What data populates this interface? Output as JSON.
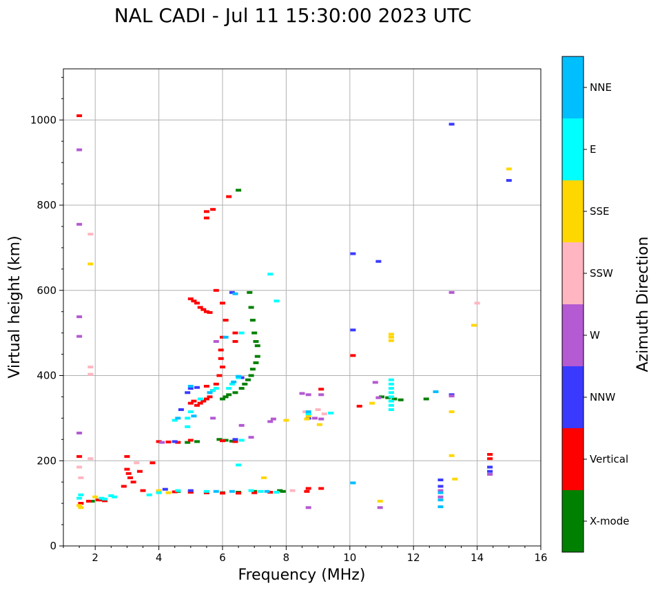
{
  "chart_data": {
    "type": "scatter",
    "title": "NAL CADI - Jul 11 15:30:00 2023 UTC",
    "xlabel": "Frequency (MHz)",
    "ylabel": "Virtual height (km)",
    "xlim": [
      1,
      16
    ],
    "ylim": [
      0,
      1120
    ],
    "xticks": [
      2,
      4,
      6,
      8,
      10,
      12,
      14,
      16
    ],
    "yticks": [
      0,
      200,
      400,
      600,
      800,
      1000
    ],
    "grid": true,
    "colorbar": {
      "label": "Azimuth Direction",
      "categories": [
        "X-mode",
        "Vertical",
        "NNW",
        "W",
        "SSW",
        "SSE",
        "E",
        "NNE"
      ],
      "colors": [
        "#008000",
        "#ff0000",
        "#3a3aff",
        "#b45ad2",
        "#ffb6c1",
        "#ffd700",
        "#00ffff",
        "#00bfff"
      ]
    },
    "series": [
      {
        "name": "X-mode",
        "points": [
          [
            6.5,
            835
          ],
          [
            6.85,
            595
          ],
          [
            6.9,
            560
          ],
          [
            6.95,
            530
          ],
          [
            7.0,
            500
          ],
          [
            7.05,
            480
          ],
          [
            7.1,
            470
          ],
          [
            7.1,
            445
          ],
          [
            7.05,
            430
          ],
          [
            6.95,
            415
          ],
          [
            6.9,
            400
          ],
          [
            6.8,
            390
          ],
          [
            6.7,
            380
          ],
          [
            6.6,
            370
          ],
          [
            6.4,
            360
          ],
          [
            6.2,
            355
          ],
          [
            6.1,
            350
          ],
          [
            6.0,
            345
          ],
          [
            5.9,
            250
          ],
          [
            6.1,
            248
          ],
          [
            6.3,
            246
          ],
          [
            5.2,
            245
          ],
          [
            4.9,
            243
          ],
          [
            7.8,
            130
          ],
          [
            7.9,
            128
          ],
          [
            7.0,
            128
          ],
          [
            6.5,
            126
          ],
          [
            6.0,
            125
          ],
          [
            5.5,
            125
          ],
          [
            5.0,
            127
          ],
          [
            4.6,
            128
          ],
          [
            11.0,
            350
          ],
          [
            11.2,
            348
          ],
          [
            11.4,
            345
          ],
          [
            11.6,
            343
          ],
          [
            12.4,
            345
          ],
          [
            2.2,
            108
          ],
          [
            1.9,
            105
          ]
        ]
      },
      {
        "name": "Vertical",
        "points": [
          [
            1.5,
            1010
          ],
          [
            6.2,
            820
          ],
          [
            5.7,
            790
          ],
          [
            5.5,
            785
          ],
          [
            5.5,
            770
          ],
          [
            5.0,
            580
          ],
          [
            5.1,
            575
          ],
          [
            5.2,
            570
          ],
          [
            5.3,
            560
          ],
          [
            5.4,
            555
          ],
          [
            5.5,
            550
          ],
          [
            5.6,
            548
          ],
          [
            5.8,
            600
          ],
          [
            6.0,
            570
          ],
          [
            6.1,
            530
          ],
          [
            6.0,
            490
          ],
          [
            6.4,
            500
          ],
          [
            6.4,
            480
          ],
          [
            5.95,
            460
          ],
          [
            5.95,
            440
          ],
          [
            6.0,
            420
          ],
          [
            5.9,
            400
          ],
          [
            5.8,
            380
          ],
          [
            5.7,
            365
          ],
          [
            5.6,
            350
          ],
          [
            5.5,
            345
          ],
          [
            5.4,
            340
          ],
          [
            5.3,
            335
          ],
          [
            5.2,
            330
          ],
          [
            5.1,
            340
          ],
          [
            5.0,
            335
          ],
          [
            5.5,
            375
          ],
          [
            10.1,
            447
          ],
          [
            10.3,
            328
          ],
          [
            9.1,
            368
          ],
          [
            8.7,
            135
          ],
          [
            8.65,
            128
          ],
          [
            9.1,
            135
          ],
          [
            4.0,
            245
          ],
          [
            4.3,
            244
          ],
          [
            4.6,
            243
          ],
          [
            5.0,
            248
          ],
          [
            6.0,
            247
          ],
          [
            6.4,
            245
          ],
          [
            3.0,
            210
          ],
          [
            3.0,
            180
          ],
          [
            3.05,
            170
          ],
          [
            3.1,
            160
          ],
          [
            3.2,
            150
          ],
          [
            3.4,
            175
          ],
          [
            3.8,
            195
          ],
          [
            2.9,
            140
          ],
          [
            3.5,
            130
          ],
          [
            4.0,
            128
          ],
          [
            4.5,
            127
          ],
          [
            5.0,
            126
          ],
          [
            5.5,
            125
          ],
          [
            6.0,
            124
          ],
          [
            6.5,
            124
          ],
          [
            7.0,
            125
          ],
          [
            7.5,
            126
          ],
          [
            2.1,
            108
          ],
          [
            2.3,
            106
          ],
          [
            1.8,
            105
          ],
          [
            1.55,
            100
          ],
          [
            14.4,
            215
          ],
          [
            14.4,
            205
          ],
          [
            1.5,
            210
          ]
        ]
      },
      {
        "name": "NNW",
        "points": [
          [
            13.2,
            990
          ],
          [
            15.0,
            858
          ],
          [
            10.1,
            686
          ],
          [
            10.1,
            507
          ],
          [
            10.9,
            668
          ],
          [
            6.3,
            595
          ],
          [
            5.0,
            370
          ],
          [
            4.9,
            360
          ],
          [
            5.2,
            372
          ],
          [
            4.7,
            320
          ],
          [
            6.4,
            250
          ],
          [
            6.6,
            395
          ],
          [
            8.7,
            300
          ],
          [
            12.85,
            155
          ],
          [
            12.85,
            140
          ],
          [
            13.2,
            355
          ],
          [
            14.4,
            185
          ],
          [
            14.4,
            175
          ],
          [
            5.0,
            130
          ],
          [
            4.2,
            133
          ],
          [
            4.5,
            245
          ]
        ]
      },
      {
        "name": "W",
        "points": [
          [
            1.5,
            930
          ],
          [
            1.5,
            755
          ],
          [
            1.5,
            538
          ],
          [
            1.5,
            492
          ],
          [
            5.8,
            480
          ],
          [
            5.7,
            300
          ],
          [
            7.6,
            298
          ],
          [
            7.5,
            292
          ],
          [
            6.6,
            283
          ],
          [
            6.9,
            255
          ],
          [
            8.5,
            358
          ],
          [
            8.7,
            355
          ],
          [
            8.9,
            300
          ],
          [
            9.1,
            298
          ],
          [
            9.1,
            355
          ],
          [
            10.8,
            384
          ],
          [
            10.9,
            348
          ],
          [
            12.85,
            130
          ],
          [
            12.85,
            115
          ],
          [
            13.2,
            595
          ],
          [
            13.2,
            352
          ],
          [
            14.4,
            168
          ],
          [
            8.7,
            90
          ],
          [
            10.95,
            90
          ],
          [
            1.5,
            265
          ],
          [
            4.1,
            243
          ]
        ]
      },
      {
        "name": "SSW",
        "points": [
          [
            1.85,
            732
          ],
          [
            1.85,
            420
          ],
          [
            1.85,
            403
          ],
          [
            1.85,
            205
          ],
          [
            1.5,
            185
          ],
          [
            1.55,
            160
          ],
          [
            3.3,
            195
          ],
          [
            8.6,
            315
          ],
          [
            9.0,
            320
          ],
          [
            9.2,
            310
          ],
          [
            14.0,
            570
          ],
          [
            8.2,
            130
          ]
        ]
      },
      {
        "name": "SSE",
        "points": [
          [
            1.85,
            662
          ],
          [
            11.3,
            497
          ],
          [
            11.3,
            490
          ],
          [
            11.3,
            482
          ],
          [
            13.9,
            518
          ],
          [
            15.0,
            885
          ],
          [
            8.7,
            305
          ],
          [
            8.65,
            298
          ],
          [
            9.05,
            285
          ],
          [
            13.2,
            315
          ],
          [
            13.2,
            212
          ],
          [
            13.3,
            157
          ],
          [
            10.95,
            105
          ],
          [
            7.3,
            160
          ],
          [
            1.5,
            95
          ],
          [
            1.55,
            90
          ],
          [
            4.3,
            125
          ],
          [
            4.0,
            130
          ],
          [
            8.0,
            295
          ],
          [
            2.0,
            115
          ],
          [
            10.7,
            335
          ]
        ]
      },
      {
        "name": "E",
        "points": [
          [
            7.5,
            638
          ],
          [
            7.7,
            575
          ],
          [
            6.6,
            500
          ],
          [
            6.5,
            395
          ],
          [
            6.3,
            380
          ],
          [
            6.2,
            370
          ],
          [
            5.8,
            370
          ],
          [
            5.7,
            365
          ],
          [
            5.6,
            360
          ],
          [
            5.3,
            345
          ],
          [
            5.0,
            315
          ],
          [
            4.9,
            300
          ],
          [
            4.9,
            280
          ],
          [
            4.5,
            295
          ],
          [
            6.5,
            190
          ],
          [
            11.3,
            390
          ],
          [
            11.3,
            380
          ],
          [
            11.3,
            370
          ],
          [
            11.3,
            360
          ],
          [
            11.3,
            350
          ],
          [
            11.3,
            340
          ],
          [
            11.3,
            330
          ],
          [
            11.3,
            320
          ],
          [
            2.6,
            115
          ],
          [
            2.5,
            118
          ],
          [
            2.3,
            110
          ],
          [
            2.2,
            112
          ],
          [
            3.7,
            120
          ],
          [
            4.0,
            125
          ],
          [
            4.6,
            130
          ],
          [
            5.5,
            128
          ],
          [
            9.4,
            312
          ],
          [
            8.7,
            310
          ],
          [
            6.9,
            130
          ],
          [
            7.2,
            128
          ],
          [
            7.7,
            126
          ],
          [
            1.55,
            120
          ],
          [
            1.5,
            112
          ],
          [
            6.6,
            248
          ]
        ]
      },
      {
        "name": "NNE",
        "points": [
          [
            6.4,
            592
          ],
          [
            6.1,
            490
          ],
          [
            6.5,
            398
          ],
          [
            6.35,
            385
          ],
          [
            12.7,
            362
          ],
          [
            12.85,
            125
          ],
          [
            12.85,
            108
          ],
          [
            12.85,
            92
          ],
          [
            10.1,
            148
          ],
          [
            8.7,
            315
          ],
          [
            5.6,
            360
          ],
          [
            5.1,
            305
          ],
          [
            4.6,
            300
          ],
          [
            6.3,
            128
          ],
          [
            5.8,
            128
          ],
          [
            7.4,
            128
          ],
          [
            5.0,
            375
          ]
        ]
      }
    ]
  }
}
